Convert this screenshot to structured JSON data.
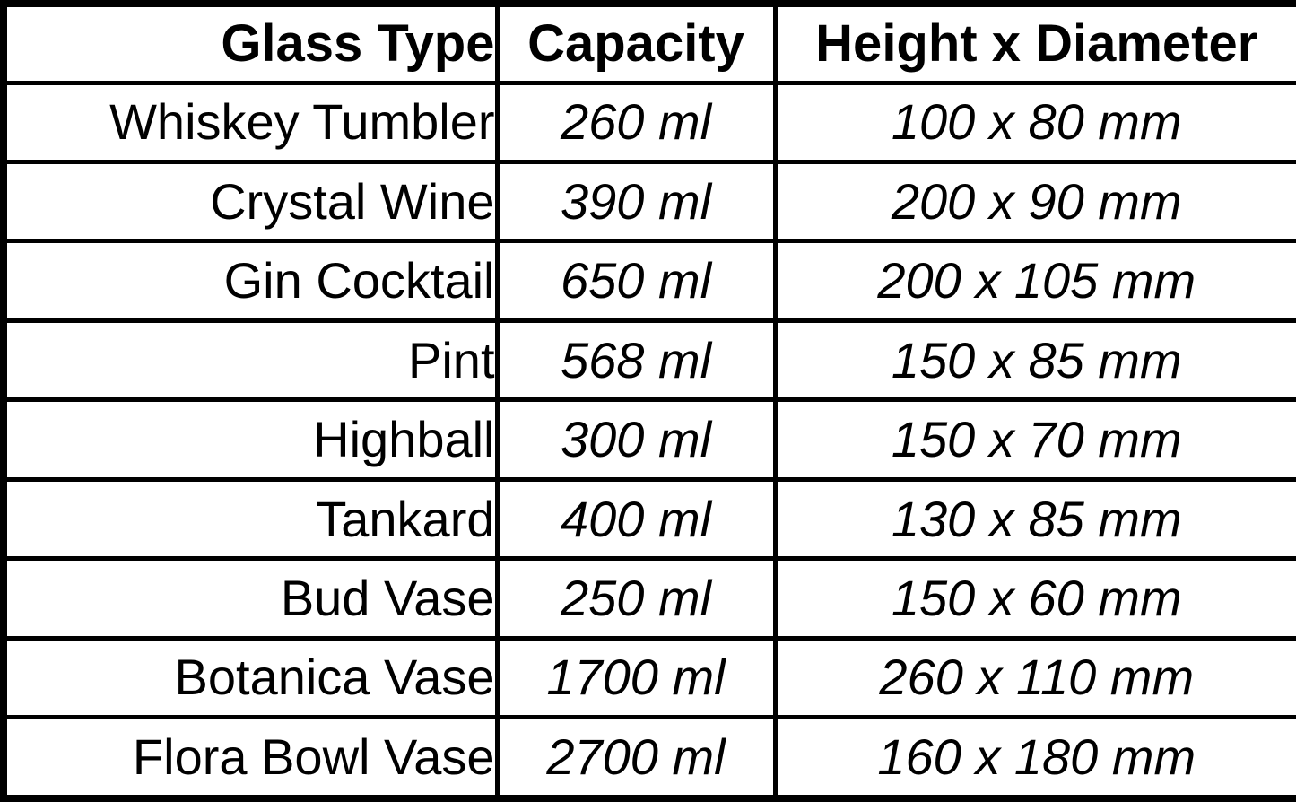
{
  "table": {
    "columns": [
      {
        "label": "Glass Type"
      },
      {
        "label": "Capacity"
      },
      {
        "label": "Height x Diameter"
      }
    ],
    "rows": [
      {
        "glass_type": "Whiskey Tumbler",
        "capacity": "260 ml",
        "dimensions": "100 x 80 mm"
      },
      {
        "glass_type": "Crystal Wine",
        "capacity": "390 ml",
        "dimensions": "200 x 90 mm"
      },
      {
        "glass_type": "Gin Cocktail",
        "capacity": "650 ml",
        "dimensions": "200 x 105 mm"
      },
      {
        "glass_type": "Pint",
        "capacity": "568 ml",
        "dimensions": "150 x 85 mm"
      },
      {
        "glass_type": "Highball",
        "capacity": "300 ml",
        "dimensions": "150 x 70 mm"
      },
      {
        "glass_type": "Tankard",
        "capacity": "400 ml",
        "dimensions": "130 x 85 mm"
      },
      {
        "glass_type": "Bud Vase",
        "capacity": "250 ml",
        "dimensions": "150 x 60 mm"
      },
      {
        "glass_type": "Botanica Vase",
        "capacity": "1700 ml",
        "dimensions": "260 x 110 mm"
      },
      {
        "glass_type": "Flora Bowl Vase",
        "capacity": "2700 ml",
        "dimensions": "160 x 180 mm"
      }
    ],
    "colors": {
      "border": "#000000",
      "background": "#ffffff",
      "text": "#000000"
    }
  }
}
